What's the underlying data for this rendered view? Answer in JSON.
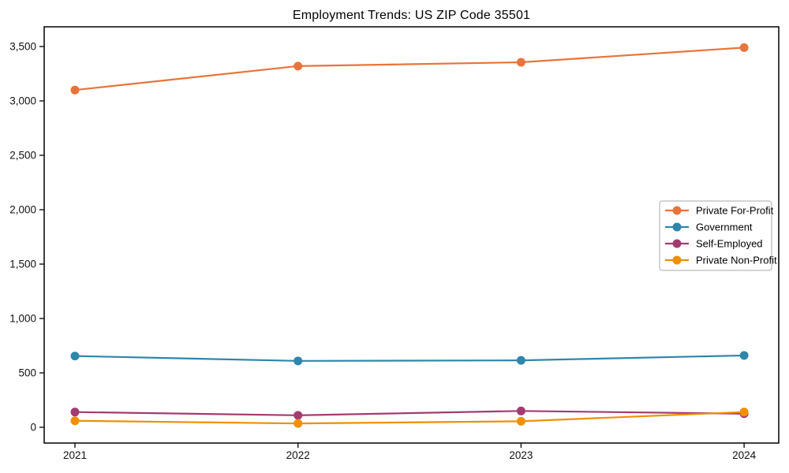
{
  "chart_data": {
    "type": "line",
    "title": "Employment Trends: US ZIP Code 35501",
    "xlabel": "",
    "ylabel": "",
    "categories": [
      "2021",
      "2022",
      "2023",
      "2024"
    ],
    "series": [
      {
        "name": "Private For-Profit",
        "color": "#E8743B",
        "values": [
          3100,
          3320,
          3355,
          3490
        ]
      },
      {
        "name": "Government",
        "color": "#2E86AB",
        "values": [
          655,
          610,
          615,
          660
        ]
      },
      {
        "name": "Self-Employed",
        "color": "#A23B72",
        "values": [
          140,
          110,
          150,
          125
        ]
      },
      {
        "name": "Private Non-Profit",
        "color": "#F18F01",
        "values": [
          60,
          35,
          55,
          140
        ]
      }
    ],
    "ylim": [
      0,
      3500
    ],
    "ytick_step": 500,
    "ytick_labels": [
      "0",
      "500",
      "1,000",
      "1,500",
      "2,000",
      "2,500",
      "3,000",
      "3,500"
    ],
    "grid": false,
    "marker": "circle",
    "legend_position": "center right",
    "axis_color": "#000000",
    "tick_label_color": "#111111",
    "legend_border_color": "#aaaaaa",
    "legend_background": "#ffffff"
  }
}
